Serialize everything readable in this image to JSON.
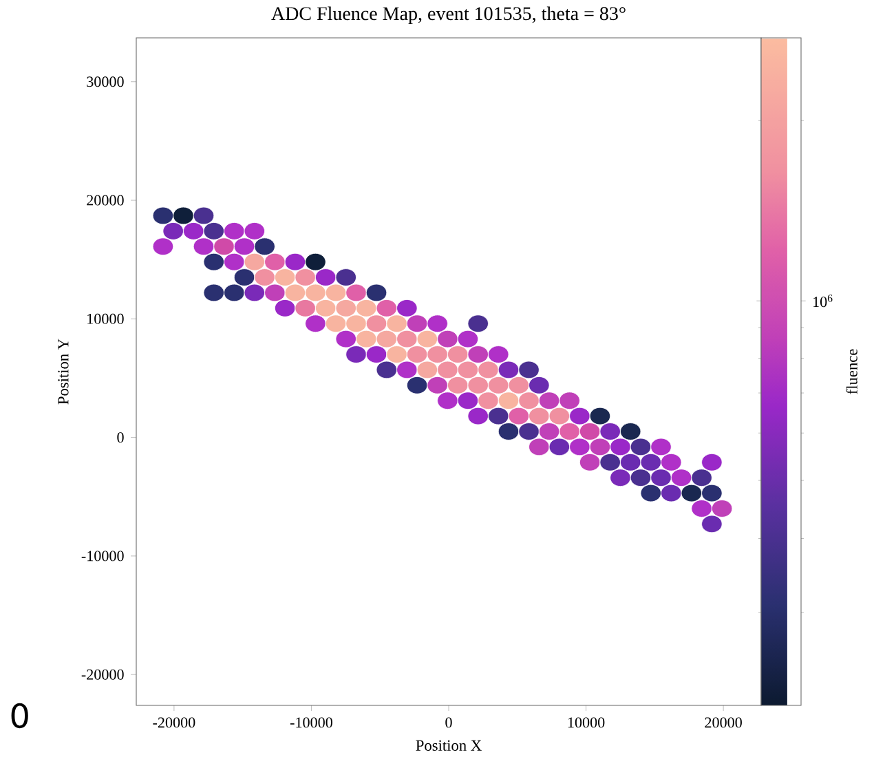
{
  "chart_data": {
    "type": "scatter",
    "title": "ADC Fluence Map, event 101535, theta = 83°",
    "xlabel": "Position X",
    "ylabel": "Position Y",
    "clabel": "fluence",
    "marker": "circle",
    "xlim": [
      -22750,
      22750
    ],
    "ylim": [
      -22600,
      33700
    ],
    "xticks": [
      -20000,
      -10000,
      0,
      10000,
      20000
    ],
    "yticks": [
      -20000,
      -10000,
      0,
      10000,
      20000,
      30000
    ],
    "annotations": [
      "0",
      "10$^{6}$"
    ],
    "x": [
      -20800,
      -19320,
      -17840,
      -20060,
      -18580,
      -17100,
      -15620,
      -14140,
      -20800,
      -17840,
      -16360,
      -14880,
      -13400,
      -17100,
      -15620,
      -14140,
      -12660,
      -11180,
      -9700,
      -14880,
      -13400,
      -11920,
      -10440,
      -8960,
      -7480,
      -17100,
      -15620,
      -14140,
      -12660,
      -11180,
      -9700,
      -8220,
      -6740,
      -5260,
      -11920,
      -10440,
      -8960,
      -7480,
      -6000,
      -4520,
      -3040,
      -9700,
      -8220,
      -6740,
      -5260,
      -3780,
      -2300,
      -820,
      2140,
      -7480,
      -6000,
      -4520,
      -3040,
      -1560,
      -80,
      1400,
      -6740,
      -5260,
      -3780,
      -2300,
      -820,
      660,
      2140,
      3620,
      -4520,
      -3040,
      -1560,
      -80,
      1400,
      2880,
      4360,
      5840,
      -2300,
      -820,
      660,
      2140,
      3620,
      5100,
      6580,
      -80,
      1400,
      2880,
      4360,
      5840,
      7320,
      8800,
      2140,
      3620,
      5100,
      6580,
      8060,
      9540,
      11020,
      4360,
      5840,
      7320,
      8800,
      10280,
      11760,
      13240,
      6580,
      8060,
      9540,
      11020,
      12500,
      13980,
      15460,
      10280,
      11760,
      13240,
      14720,
      16200,
      19160,
      12500,
      13980,
      15460,
      16940,
      18420,
      14720,
      16200,
      17680,
      19160,
      18420,
      19900,
      19160
    ],
    "values": [
      18700,
      18700,
      18700,
      17400,
      17400,
      17400,
      17400,
      17400,
      16100,
      16100,
      16100,
      16100,
      16100,
      14800,
      14800,
      14800,
      14800,
      14800,
      14800,
      13500,
      13500,
      13500,
      13500,
      13500,
      13500,
      12200,
      12200,
      12200,
      12200,
      12200,
      12200,
      12200,
      12200,
      12200,
      10900,
      10900,
      10900,
      10900,
      10900,
      10900,
      10900,
      9600,
      9600,
      9600,
      9600,
      9600,
      9600,
      9600,
      9600,
      8300,
      8300,
      8300,
      8300,
      8300,
      8300,
      8300,
      7000,
      7000,
      7000,
      7000,
      7000,
      7000,
      7000,
      7000,
      5700,
      5700,
      5700,
      5700,
      5700,
      5700,
      5700,
      5700,
      4400,
      4400,
      4400,
      4400,
      4400,
      4400,
      4400,
      3100,
      3100,
      3100,
      3100,
      3100,
      3100,
      3100,
      1800,
      1800,
      1800,
      1800,
      1800,
      1800,
      1800,
      500,
      500,
      500,
      500,
      500,
      500,
      500,
      -800,
      -800,
      -800,
      -800,
      -800,
      -800,
      -800,
      -2100,
      -2100,
      -2100,
      -2100,
      -2100,
      -2100,
      -3400,
      -3400,
      -3400,
      -3400,
      -3400,
      -4700,
      -4700,
      -4700,
      -4700,
      -6000,
      -6000,
      -7300
    ],
    "colors": [
      "#2a3070",
      "#0f1f3a",
      "#4a3090",
      "#7a2ab8",
      "#9a28c8",
      "#4a3090",
      "#b030c8",
      "#b030c8",
      "#b030c8",
      "#b030c8",
      "#d04aa8",
      "#b030c8",
      "#2a3070",
      "#2a3070",
      "#b030c8",
      "#f5a8a0",
      "#e060a8",
      "#9a28c8",
      "#0f1f3a",
      "#2a3070",
      "#f090a0",
      "#f8b4a0",
      "#f090a0",
      "#9a28c8",
      "#4a3090",
      "#2a3070",
      "#2a3070",
      "#7a2ab8",
      "#c040b8",
      "#f8b4a0",
      "#f8b4a0",
      "#f8b4a0",
      "#e060a8",
      "#2a3070",
      "#9a28c8",
      "#e878a0",
      "#f8b4a0",
      "#f5a8a0",
      "#f8b4a0",
      "#e060a8",
      "#9a28c8",
      "#b030c8",
      "#f8b4a0",
      "#f8b4a0",
      "#f090a0",
      "#f8b4a0",
      "#c040b8",
      "#b030c8",
      "#4a3090",
      "#b030c8",
      "#f8b4a0",
      "#f5a8a0",
      "#f090a0",
      "#f8b4a0",
      "#c040b8",
      "#b030c8",
      "#7a2ab8",
      "#9a28c8",
      "#f8b4a0",
      "#f090a0",
      "#f090a0",
      "#f090a0",
      "#c040b8",
      "#b030c8",
      "#4a3090",
      "#b030c8",
      "#f5a8a0",
      "#f090a0",
      "#f090a0",
      "#f090a0",
      "#7a2ab8",
      "#4a3090",
      "#2a3070",
      "#c040b8",
      "#f090a0",
      "#f090a0",
      "#f090a0",
      "#f090a0",
      "#6a2cb0",
      "#b030c8",
      "#9a28c8",
      "#f090a0",
      "#f8b4a0",
      "#f090a0",
      "#c040b8",
      "#c040b8",
      "#9a28c8",
      "#4a3090",
      "#e060a8",
      "#f090a0",
      "#f090a0",
      "#9a28c8",
      "#1a2850",
      "#2a3070",
      "#4a3090",
      "#c040b8",
      "#e060a8",
      "#d04aa8",
      "#7a2ab8",
      "#1a2850",
      "#c040b8",
      "#6a2cb0",
      "#b030c8",
      "#c040b8",
      "#9a28c8",
      "#4a3090",
      "#b030c8",
      "#c040b8",
      "#4a3090",
      "#6a2cb0",
      "#6a2cb0",
      "#b030c8",
      "#9a28c8",
      "#7a2ab8",
      "#4a3090",
      "#6a2cb0",
      "#b030c8",
      "#4a3090",
      "#2a3070",
      "#6a2cb0",
      "#1a2850",
      "#2a3070",
      "#b030c8",
      "#c040b8",
      "#6a2cb0"
    ]
  }
}
